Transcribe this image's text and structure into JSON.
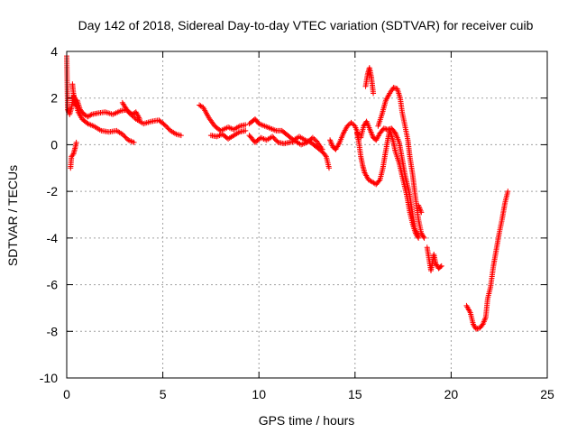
{
  "chart_data": {
    "type": "scatter",
    "title": "Day 142 of 2018, Sidereal Day-to-day VTEC variation (SDTVAR) for receiver cuib",
    "xlabel": "GPS time / hours",
    "ylabel": "SDTVAR / TECUs",
    "xlim": [
      0,
      25
    ],
    "ylim": [
      -10,
      4
    ],
    "xticks": [
      0,
      5,
      10,
      15,
      20,
      25
    ],
    "yticks": [
      -10,
      -8,
      -6,
      -4,
      -2,
      0,
      2,
      4
    ],
    "grid": true,
    "marker": "+",
    "series": [
      {
        "name": "SDTVAR",
        "color": "#ff0000",
        "tracks": [
          [
            [
              0.0,
              3.8
            ],
            [
              0.05,
              1.5
            ],
            [
              0.1,
              1.4
            ]
          ],
          [
            [
              0.15,
              1.3
            ],
            [
              0.25,
              1.6
            ],
            [
              0.35,
              2.1
            ],
            [
              0.45,
              1.7
            ],
            [
              0.55,
              1.9
            ],
            [
              0.7,
              1.5
            ],
            [
              0.9,
              1.3
            ],
            [
              1.1,
              1.2
            ],
            [
              1.3,
              1.3
            ],
            [
              1.6,
              1.35
            ],
            [
              2.0,
              1.4
            ],
            [
              2.4,
              1.3
            ],
            [
              2.8,
              1.45
            ],
            [
              3.1,
              1.5
            ],
            [
              3.4,
              1.3
            ],
            [
              3.6,
              1.4
            ],
            [
              3.8,
              1.1
            ]
          ],
          [
            [
              0.3,
              2.6
            ],
            [
              0.35,
              2.2
            ],
            [
              0.45,
              1.8
            ],
            [
              0.6,
              1.4
            ],
            [
              0.8,
              1.1
            ],
            [
              1.1,
              0.9
            ],
            [
              1.4,
              0.8
            ],
            [
              1.8,
              0.6
            ],
            [
              2.2,
              0.55
            ],
            [
              2.6,
              0.6
            ],
            [
              2.9,
              0.45
            ],
            [
              3.2,
              0.2
            ],
            [
              3.5,
              0.1
            ]
          ],
          [
            [
              0.2,
              -1.0
            ],
            [
              0.25,
              -0.5
            ],
            [
              0.35,
              -0.4
            ],
            [
              0.45,
              -0.1
            ],
            [
              0.5,
              0.1
            ]
          ],
          [
            [
              2.9,
              1.8
            ],
            [
              3.2,
              1.4
            ],
            [
              3.6,
              1.1
            ],
            [
              4.0,
              0.9
            ],
            [
              4.4,
              1.0
            ],
            [
              4.8,
              1.05
            ],
            [
              5.1,
              0.85
            ],
            [
              5.4,
              0.6
            ],
            [
              5.7,
              0.45
            ],
            [
              5.95,
              0.4
            ]
          ],
          [
            [
              6.9,
              1.7
            ],
            [
              7.1,
              1.6
            ],
            [
              7.4,
              1.15
            ],
            [
              7.7,
              0.8
            ],
            [
              8.0,
              0.6
            ],
            [
              8.4,
              0.75
            ],
            [
              8.7,
              0.65
            ],
            [
              9.0,
              0.8
            ],
            [
              9.3,
              0.85
            ]
          ],
          [
            [
              7.5,
              0.4
            ],
            [
              7.8,
              0.35
            ],
            [
              8.1,
              0.45
            ],
            [
              8.4,
              0.25
            ],
            [
              8.7,
              0.4
            ],
            [
              9.0,
              0.55
            ],
            [
              9.3,
              0.6
            ]
          ],
          [
            [
              9.5,
              0.4
            ],
            [
              9.8,
              0.1
            ],
            [
              10.1,
              0.3
            ],
            [
              10.4,
              0.2
            ],
            [
              10.7,
              0.35
            ],
            [
              11.0,
              0.1
            ],
            [
              11.3,
              0.05
            ],
            [
              11.6,
              0.1
            ],
            [
              11.9,
              0.15
            ],
            [
              12.2,
              0.0
            ],
            [
              12.5,
              0.1
            ],
            [
              12.8,
              0.3
            ],
            [
              13.0,
              0.15
            ],
            [
              13.3,
              -0.2
            ]
          ],
          [
            [
              9.5,
              0.9
            ],
            [
              9.8,
              1.1
            ],
            [
              10.0,
              0.9
            ],
            [
              10.3,
              0.8
            ],
            [
              10.6,
              0.7
            ],
            [
              10.9,
              0.6
            ],
            [
              11.2,
              0.6
            ],
            [
              11.5,
              0.4
            ],
            [
              11.8,
              0.2
            ],
            [
              12.1,
              0.35
            ],
            [
              12.4,
              0.2
            ],
            [
              12.7,
              0.1
            ],
            [
              13.0,
              -0.1
            ],
            [
              13.3,
              -0.3
            ],
            [
              13.5,
              -0.5
            ],
            [
              13.65,
              -1.0
            ]
          ],
          [
            [
              13.7,
              0.2
            ],
            [
              13.85,
              -0.1
            ],
            [
              14.0,
              -0.2
            ],
            [
              14.2,
              0.1
            ],
            [
              14.4,
              0.5
            ],
            [
              14.6,
              0.8
            ],
            [
              14.8,
              0.95
            ],
            [
              15.0,
              0.8
            ],
            [
              15.1,
              0.6
            ],
            [
              15.2,
              0.3
            ]
          ],
          [
            [
              15.1,
              0.5
            ],
            [
              15.2,
              0.1
            ],
            [
              15.3,
              -0.5
            ],
            [
              15.4,
              -0.9
            ],
            [
              15.5,
              -1.2
            ],
            [
              15.7,
              -1.5
            ],
            [
              15.9,
              -1.6
            ],
            [
              16.1,
              -1.7
            ],
            [
              16.3,
              -1.5
            ],
            [
              16.45,
              -1.0
            ],
            [
              16.55,
              -0.5
            ],
            [
              16.7,
              0.2
            ],
            [
              16.8,
              0.6
            ],
            [
              16.9,
              0.4
            ],
            [
              17.0,
              0.1
            ],
            [
              17.1,
              -0.3
            ],
            [
              17.3,
              -0.8
            ],
            [
              17.5,
              -1.5
            ],
            [
              17.7,
              -2.2
            ],
            [
              17.85,
              -2.9
            ],
            [
              18.0,
              -3.4
            ],
            [
              18.15,
              -3.8
            ],
            [
              18.3,
              -4.0
            ]
          ],
          [
            [
              15.55,
              2.5
            ],
            [
              15.65,
              3.0
            ],
            [
              15.75,
              3.3
            ],
            [
              15.85,
              2.9
            ],
            [
              15.95,
              2.2
            ]
          ],
          [
            [
              15.3,
              0.3
            ],
            [
              15.45,
              0.8
            ],
            [
              15.6,
              1.0
            ],
            [
              15.8,
              0.6
            ],
            [
              15.95,
              0.3
            ],
            [
              16.1,
              0.2
            ],
            [
              16.3,
              0.5
            ],
            [
              16.5,
              0.7
            ],
            [
              16.7,
              0.65
            ],
            [
              16.9,
              0.7
            ],
            [
              17.1,
              0.5
            ],
            [
              17.3,
              0.1
            ],
            [
              17.45,
              -0.6
            ],
            [
              17.6,
              -1.3
            ],
            [
              17.75,
              -1.8
            ],
            [
              17.85,
              -2.2
            ],
            [
              18.0,
              -3.0
            ],
            [
              18.1,
              -3.6
            ],
            [
              18.3,
              -3.9
            ]
          ],
          [
            [
              16.2,
              0.8
            ],
            [
              16.4,
              1.3
            ],
            [
              16.6,
              1.9
            ],
            [
              16.8,
              2.2
            ],
            [
              17.0,
              2.45
            ],
            [
              17.2,
              2.4
            ],
            [
              17.35,
              2.0
            ],
            [
              17.45,
              1.4
            ],
            [
              17.6,
              0.8
            ],
            [
              17.75,
              0.2
            ],
            [
              17.85,
              -0.5
            ],
            [
              18.0,
              -1.3
            ],
            [
              18.1,
              -2.0
            ],
            [
              18.2,
              -2.6
            ],
            [
              18.3,
              -3.2
            ],
            [
              18.45,
              -3.8
            ],
            [
              18.6,
              -4.0
            ]
          ],
          [
            [
              18.3,
              -2.6
            ],
            [
              18.45,
              -2.9
            ]
          ],
          [
            [
              18.75,
              -4.4
            ],
            [
              18.85,
              -4.9
            ],
            [
              18.95,
              -5.4
            ],
            [
              19.1,
              -4.7
            ],
            [
              19.2,
              -5.1
            ],
            [
              19.35,
              -5.3
            ],
            [
              19.5,
              -5.2
            ]
          ],
          [
            [
              20.8,
              -6.9
            ],
            [
              21.0,
              -7.2
            ],
            [
              21.15,
              -7.7
            ],
            [
              21.3,
              -7.9
            ],
            [
              21.5,
              -7.85
            ],
            [
              21.65,
              -7.7
            ],
            [
              21.8,
              -7.4
            ],
            [
              21.9,
              -6.6
            ],
            [
              22.05,
              -6.1
            ],
            [
              22.2,
              -5.2
            ],
            [
              22.35,
              -4.5
            ],
            [
              22.5,
              -3.8
            ],
            [
              22.65,
              -3.2
            ],
            [
              22.8,
              -2.5
            ],
            [
              22.95,
              -2.0
            ]
          ]
        ]
      }
    ]
  }
}
